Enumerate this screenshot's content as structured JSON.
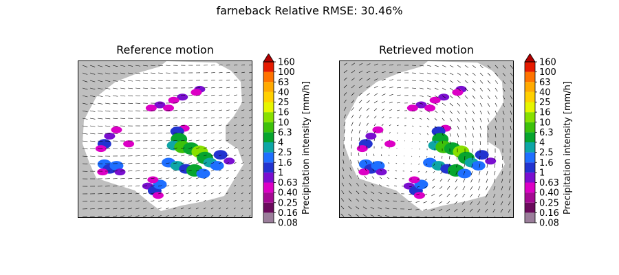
{
  "figure": {
    "title": "farneback Relative RMSE: 30.46%"
  },
  "colors": {
    "no_data": "#bfbfbf",
    "background_field": "#ffffff",
    "arrow": "#000000"
  },
  "colorbar": {
    "label": "Precipitation intensity [mm/h]",
    "tick_labels": [
      "0.08",
      "0.16",
      "0.25",
      "0.40",
      "0.63",
      "1",
      "1.6",
      "2.5",
      "4",
      "6.3",
      "10",
      "16",
      "25",
      "40",
      "63",
      "100",
      "160"
    ],
    "colors": [
      "#9b7e9b",
      "#6a0b5c",
      "#a30a92",
      "#dc00c5",
      "#7a0fd0",
      "#2233d0",
      "#1f6fff",
      "#0ea6a6",
      "#07a52e",
      "#3dc10b",
      "#88e000",
      "#e6f500",
      "#ffd000",
      "#ffaa00",
      "#ff7300",
      "#e61a00",
      "#b00000"
    ],
    "extend": "max"
  },
  "chart_data": [
    {
      "type": "heatmap",
      "title": "Reference motion",
      "motion_field": "reference",
      "cells": [
        {
          "x": 0.7,
          "y": 0.82,
          "value": 0.63
        },
        {
          "x": 0.68,
          "y": 0.8,
          "value": 0.4
        },
        {
          "x": 0.6,
          "y": 0.77,
          "value": 0.63
        },
        {
          "x": 0.55,
          "y": 0.75,
          "value": 0.4
        },
        {
          "x": 0.47,
          "y": 0.72,
          "value": 0.63
        },
        {
          "x": 0.42,
          "y": 0.7,
          "value": 0.4
        },
        {
          "x": 0.61,
          "y": 0.57,
          "value": 0.4
        },
        {
          "x": 0.57,
          "y": 0.55,
          "value": 1
        },
        {
          "x": 0.58,
          "y": 0.5,
          "value": 4
        },
        {
          "x": 0.55,
          "y": 0.46,
          "value": 2.5
        },
        {
          "x": 0.6,
          "y": 0.45,
          "value": 6.3
        },
        {
          "x": 0.65,
          "y": 0.44,
          "value": 4
        },
        {
          "x": 0.7,
          "y": 0.42,
          "value": 10
        },
        {
          "x": 0.73,
          "y": 0.38,
          "value": 4
        },
        {
          "x": 0.76,
          "y": 0.35,
          "value": 2.5
        },
        {
          "x": 0.8,
          "y": 0.33,
          "value": 1.6
        },
        {
          "x": 0.52,
          "y": 0.35,
          "value": 1.6
        },
        {
          "x": 0.57,
          "y": 0.33,
          "value": 2.5
        },
        {
          "x": 0.62,
          "y": 0.31,
          "value": 1
        },
        {
          "x": 0.67,
          "y": 0.3,
          "value": 4
        },
        {
          "x": 0.72,
          "y": 0.28,
          "value": 1.6
        },
        {
          "x": 0.82,
          "y": 0.4,
          "value": 1
        },
        {
          "x": 0.87,
          "y": 0.36,
          "value": 0.63
        },
        {
          "x": 0.22,
          "y": 0.56,
          "value": 0.4
        },
        {
          "x": 0.18,
          "y": 0.52,
          "value": 0.63
        },
        {
          "x": 0.15,
          "y": 0.47,
          "value": 1
        },
        {
          "x": 0.13,
          "y": 0.44,
          "value": 0.4
        },
        {
          "x": 0.15,
          "y": 0.34,
          "value": 1.6
        },
        {
          "x": 0.18,
          "y": 0.31,
          "value": 1
        },
        {
          "x": 0.22,
          "y": 0.33,
          "value": 1.6
        },
        {
          "x": 0.24,
          "y": 0.29,
          "value": 0.63
        },
        {
          "x": 0.14,
          "y": 0.29,
          "value": 0.4
        },
        {
          "x": 0.4,
          "y": 0.2,
          "value": 0.63
        },
        {
          "x": 0.44,
          "y": 0.17,
          "value": 1
        },
        {
          "x": 0.47,
          "y": 0.21,
          "value": 1.6
        },
        {
          "x": 0.43,
          "y": 0.24,
          "value": 0.4
        },
        {
          "x": 0.46,
          "y": 0.14,
          "value": 0.4
        },
        {
          "x": 0.52,
          "y": 0.7,
          "value": 0.4
        },
        {
          "x": 0.29,
          "y": 0.47,
          "value": 0.4
        }
      ]
    },
    {
      "type": "heatmap",
      "title": "Retrieved motion",
      "motion_field": "retrieved",
      "cells": [
        {
          "x": 0.7,
          "y": 0.82,
          "value": 0.63
        },
        {
          "x": 0.68,
          "y": 0.8,
          "value": 0.4
        },
        {
          "x": 0.6,
          "y": 0.77,
          "value": 0.63
        },
        {
          "x": 0.55,
          "y": 0.75,
          "value": 0.4
        },
        {
          "x": 0.47,
          "y": 0.72,
          "value": 0.63
        },
        {
          "x": 0.42,
          "y": 0.7,
          "value": 0.4
        },
        {
          "x": 0.61,
          "y": 0.57,
          "value": 0.4
        },
        {
          "x": 0.57,
          "y": 0.55,
          "value": 1
        },
        {
          "x": 0.58,
          "y": 0.5,
          "value": 4
        },
        {
          "x": 0.55,
          "y": 0.46,
          "value": 2.5
        },
        {
          "x": 0.6,
          "y": 0.45,
          "value": 6.3
        },
        {
          "x": 0.65,
          "y": 0.44,
          "value": 4
        },
        {
          "x": 0.7,
          "y": 0.42,
          "value": 10
        },
        {
          "x": 0.73,
          "y": 0.38,
          "value": 4
        },
        {
          "x": 0.76,
          "y": 0.35,
          "value": 2.5
        },
        {
          "x": 0.8,
          "y": 0.33,
          "value": 1.6
        },
        {
          "x": 0.52,
          "y": 0.35,
          "value": 1.6
        },
        {
          "x": 0.57,
          "y": 0.33,
          "value": 2.5
        },
        {
          "x": 0.62,
          "y": 0.31,
          "value": 1
        },
        {
          "x": 0.67,
          "y": 0.3,
          "value": 4
        },
        {
          "x": 0.72,
          "y": 0.28,
          "value": 1.6
        },
        {
          "x": 0.82,
          "y": 0.4,
          "value": 1
        },
        {
          "x": 0.87,
          "y": 0.36,
          "value": 0.63
        },
        {
          "x": 0.22,
          "y": 0.56,
          "value": 0.4
        },
        {
          "x": 0.18,
          "y": 0.52,
          "value": 0.63
        },
        {
          "x": 0.15,
          "y": 0.47,
          "value": 1
        },
        {
          "x": 0.13,
          "y": 0.44,
          "value": 0.4
        },
        {
          "x": 0.15,
          "y": 0.34,
          "value": 1.6
        },
        {
          "x": 0.18,
          "y": 0.31,
          "value": 1
        },
        {
          "x": 0.22,
          "y": 0.33,
          "value": 1.6
        },
        {
          "x": 0.24,
          "y": 0.29,
          "value": 0.63
        },
        {
          "x": 0.14,
          "y": 0.29,
          "value": 0.4
        },
        {
          "x": 0.4,
          "y": 0.2,
          "value": 0.63
        },
        {
          "x": 0.44,
          "y": 0.17,
          "value": 1
        },
        {
          "x": 0.47,
          "y": 0.21,
          "value": 1.6
        },
        {
          "x": 0.43,
          "y": 0.24,
          "value": 0.4
        },
        {
          "x": 0.46,
          "y": 0.14,
          "value": 0.4
        },
        {
          "x": 0.52,
          "y": 0.7,
          "value": 0.4
        },
        {
          "x": 0.29,
          "y": 0.47,
          "value": 0.4
        }
      ]
    }
  ]
}
